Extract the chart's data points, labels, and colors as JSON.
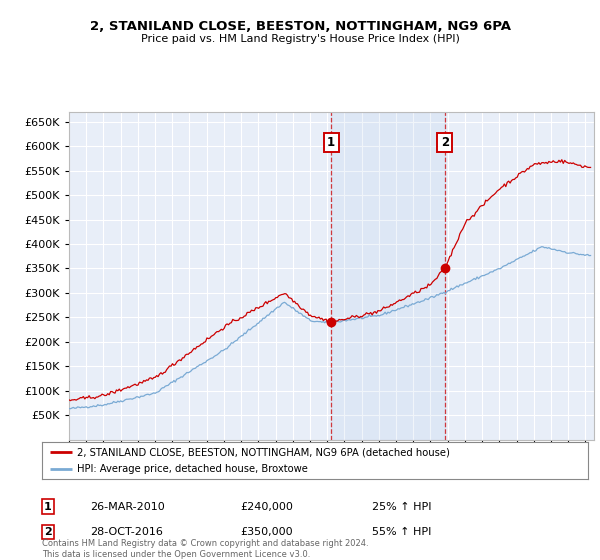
{
  "title": "2, STANILAND CLOSE, BEESTON, NOTTINGHAM, NG9 6PA",
  "subtitle": "Price paid vs. HM Land Registry's House Price Index (HPI)",
  "ylim": [
    0,
    670000
  ],
  "yticks": [
    50000,
    100000,
    150000,
    200000,
    250000,
    300000,
    350000,
    400000,
    450000,
    500000,
    550000,
    600000,
    650000
  ],
  "xlim_start": 1995.0,
  "xlim_end": 2025.5,
  "red_color": "#cc0000",
  "blue_color": "#7aaad4",
  "background_plot": "#e8eef8",
  "background_fig": "#ffffff",
  "grid_color": "#ffffff",
  "sale1_date": 2010.23,
  "sale1_price": 240000,
  "sale1_label": "1",
  "sale2_date": 2016.83,
  "sale2_price": 350000,
  "sale2_label": "2",
  "legend_line1": "2, STANILAND CLOSE, BEESTON, NOTTINGHAM, NG9 6PA (detached house)",
  "legend_line2": "HPI: Average price, detached house, Broxtowe",
  "ann1_date_str": "26-MAR-2010",
  "ann1_price_str": "£240,000",
  "ann1_hpi_str": "25% ↑ HPI",
  "ann2_date_str": "28-OCT-2016",
  "ann2_price_str": "£350,000",
  "ann2_hpi_str": "55% ↑ HPI",
  "footer": "Contains HM Land Registry data © Crown copyright and database right 2024.\nThis data is licensed under the Open Government Licence v3.0."
}
